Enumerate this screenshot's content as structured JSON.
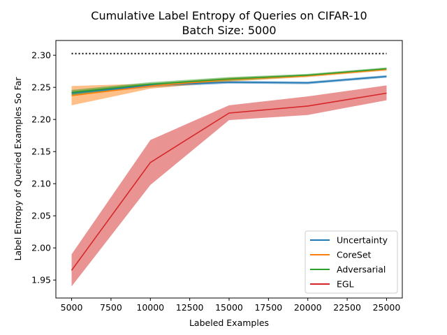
{
  "chart_data": {
    "type": "line",
    "title": "Cumulative Label Entropy of Queries on CIFAR-10",
    "subtitle": "Batch Size: 5000",
    "xlabel": "Labeled Examples",
    "ylabel": "Label Entropy of Queried Examples So Far",
    "xlim": [
      4000,
      26000
    ],
    "ylim": [
      1.922,
      2.323
    ],
    "x": [
      5000,
      10000,
      15000,
      20000,
      25000
    ],
    "xticks": [
      5000,
      7500,
      10000,
      12500,
      15000,
      17500,
      20000,
      22500,
      25000
    ],
    "yticks": [
      1.95,
      2.0,
      2.05,
      2.1,
      2.15,
      2.2,
      2.25,
      2.3
    ],
    "grid": false,
    "legend_position": "lower-right",
    "reference_line": {
      "y": 2.3026,
      "style": "dotted",
      "color": "#000000"
    },
    "series": [
      {
        "name": "Uncertainty",
        "color": "#1f77b4",
        "values": [
          2.241,
          2.253,
          2.258,
          2.257,
          2.267
        ],
        "lower": [
          2.238,
          2.25,
          2.256,
          2.255,
          2.265
        ],
        "upper": [
          2.244,
          2.256,
          2.26,
          2.259,
          2.269
        ]
      },
      {
        "name": "CoreSet",
        "color": "#ff7f0e",
        "values": [
          2.237,
          2.252,
          2.262,
          2.268,
          2.278
        ],
        "lower": [
          2.222,
          2.248,
          2.259,
          2.266,
          2.276
        ],
        "upper": [
          2.252,
          2.256,
          2.265,
          2.27,
          2.28
        ]
      },
      {
        "name": "Adversarial",
        "color": "#2ca02c",
        "values": [
          2.242,
          2.255,
          2.263,
          2.269,
          2.279
        ],
        "lower": [
          2.238,
          2.252,
          2.26,
          2.267,
          2.277
        ],
        "upper": [
          2.246,
          2.258,
          2.266,
          2.271,
          2.281
        ]
      },
      {
        "name": "EGL",
        "color": "#d62728",
        "values": [
          1.965,
          2.133,
          2.21,
          2.221,
          2.241
        ],
        "lower": [
          1.94,
          2.098,
          2.199,
          2.207,
          2.23
        ],
        "upper": [
          1.99,
          2.168,
          2.222,
          2.236,
          2.253
        ]
      }
    ]
  }
}
